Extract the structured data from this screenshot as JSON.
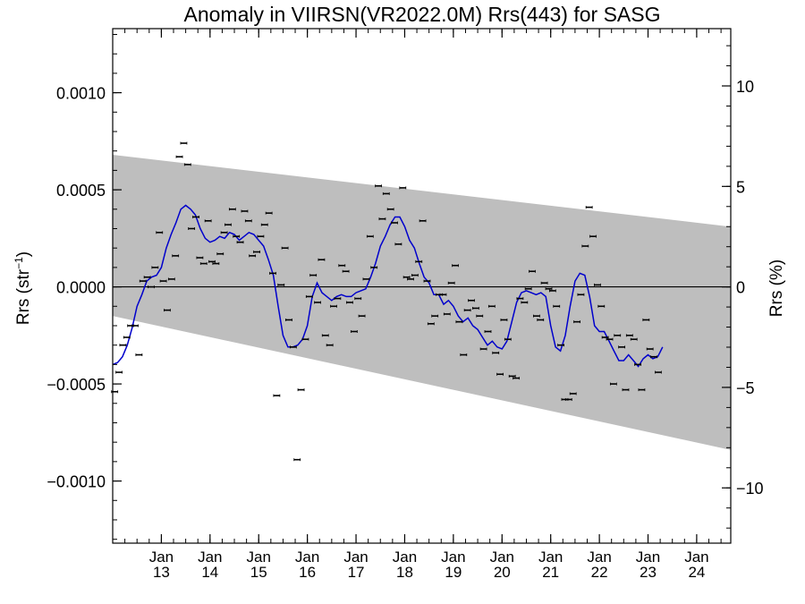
{
  "colors": {
    "band": "#bebebe",
    "series": "#0000cc",
    "points": "#000000",
    "zero_line": "#000000",
    "background": "#ffffff"
  },
  "chart_data": {
    "type": "scatter",
    "title": "Anomaly in VIIRSN(VR2022.0M) Rrs(443) for SASG",
    "ylabel": {
      "base": "Rrs (str",
      "sup": "−1",
      "end": ")"
    },
    "ylabel_right": "Rrs (%)",
    "x_range": [
      2012.0,
      2024.7
    ],
    "ylim": [
      -0.00132,
      0.00133
    ],
    "ylim_right": [
      -12.75,
      12.85
    ],
    "y_ticks": [
      {
        "value": 0.001,
        "label": "0.0010"
      },
      {
        "value": 0.0005,
        "label": "0.0005"
      },
      {
        "value": 0.0,
        "label": "0.0000"
      },
      {
        "value": -0.0005,
        "label": "−0.0005"
      },
      {
        "value": -0.001,
        "label": "−0.0010"
      }
    ],
    "y_ticks_right": [
      {
        "value": 10,
        "label": "10"
      },
      {
        "value": 5,
        "label": "5"
      },
      {
        "value": 0,
        "label": "0"
      },
      {
        "value": -5,
        "label": "−5"
      },
      {
        "value": -10,
        "label": "−10"
      }
    ],
    "x_ticks": [
      {
        "value": 2013.0,
        "month": "Jan",
        "year": "13"
      },
      {
        "value": 2014.0,
        "month": "Jan",
        "year": "14"
      },
      {
        "value": 2015.0,
        "month": "Jan",
        "year": "15"
      },
      {
        "value": 2016.0,
        "month": "Jan",
        "year": "16"
      },
      {
        "value": 2017.0,
        "month": "Jan",
        "year": "17"
      },
      {
        "value": 2018.0,
        "month": "Jan",
        "year": "18"
      },
      {
        "value": 2019.0,
        "month": "Jan",
        "year": "19"
      },
      {
        "value": 2020.0,
        "month": "Jan",
        "year": "20"
      },
      {
        "value": 2021.0,
        "month": "Jan",
        "year": "21"
      },
      {
        "value": 2022.0,
        "month": "Jan",
        "year": "22"
      },
      {
        "value": 2023.0,
        "month": "Jan",
        "year": "23"
      },
      {
        "value": 2024.0,
        "month": "Jan",
        "year": "24"
      }
    ],
    "zero_line": 0.0,
    "band": {
      "upper": [
        [
          2012.0,
          0.00068
        ],
        [
          2024.7,
          0.00031
        ]
      ],
      "lower": [
        [
          2012.0,
          -0.00015
        ],
        [
          2024.7,
          -0.00084
        ]
      ]
    },
    "points": [
      [
        2012.04,
        -0.00054
      ],
      [
        2012.13,
        -0.00044
      ],
      [
        2012.21,
        -0.0003
      ],
      [
        2012.29,
        -0.00026
      ],
      [
        2012.37,
        -0.0002
      ],
      [
        2012.46,
        -0.0002
      ],
      [
        2012.54,
        -0.00035
      ],
      [
        2012.62,
        3e-05
      ],
      [
        2012.71,
        5e-05
      ],
      [
        2012.79,
        0.0
      ],
      [
        2012.87,
        0.0001
      ],
      [
        2012.96,
        0.00028
      ],
      [
        2013.04,
        3e-05
      ],
      [
        2013.12,
        -0.00012
      ],
      [
        2013.21,
        4e-05
      ],
      [
        2013.29,
        0.00016
      ],
      [
        2013.37,
        0.00067
      ],
      [
        2013.46,
        0.00074
      ],
      [
        2013.54,
        0.00063
      ],
      [
        2013.62,
        0.0003
      ],
      [
        2013.71,
        0.00036
      ],
      [
        2013.79,
        0.00015
      ],
      [
        2013.87,
        0.00012
      ],
      [
        2013.96,
        0.00034
      ],
      [
        2014.04,
        0.00013
      ],
      [
        2014.12,
        0.00012
      ],
      [
        2014.21,
        0.00017
      ],
      [
        2014.29,
        0.00028
      ],
      [
        2014.37,
        0.00032
      ],
      [
        2014.46,
        0.0004
      ],
      [
        2014.54,
        0.00026
      ],
      [
        2014.62,
        0.00023
      ],
      [
        2014.71,
        0.00039
      ],
      [
        2014.79,
        0.00034
      ],
      [
        2014.87,
        0.00016
      ],
      [
        2014.96,
        0.00018
      ],
      [
        2015.04,
        0.00026
      ],
      [
        2015.12,
        0.00032
      ],
      [
        2015.21,
        0.00038
      ],
      [
        2015.29,
        7e-05
      ],
      [
        2015.37,
        -0.00056
      ],
      [
        2015.46,
        1e-05
      ],
      [
        2015.54,
        0.0002
      ],
      [
        2015.62,
        -0.00017
      ],
      [
        2015.71,
        -0.00031
      ],
      [
        2015.79,
        -0.00089
      ],
      [
        2015.87,
        -0.00053
      ],
      [
        2015.96,
        -0.00027
      ],
      [
        2016.04,
        -5e-05
      ],
      [
        2016.12,
        6e-05
      ],
      [
        2016.21,
        -8e-05
      ],
      [
        2016.29,
        0.00014
      ],
      [
        2016.37,
        -0.00025
      ],
      [
        2016.46,
        -0.0003
      ],
      [
        2016.54,
        -0.0001
      ],
      [
        2016.62,
        -6e-05
      ],
      [
        2016.71,
        0.00011
      ],
      [
        2016.79,
        8e-05
      ],
      [
        2016.87,
        -8e-05
      ],
      [
        2016.96,
        -0.00023
      ],
      [
        2017.04,
        -6e-05
      ],
      [
        2017.12,
        -0.00015
      ],
      [
        2017.21,
        4e-05
      ],
      [
        2017.29,
        0.00026
      ],
      [
        2017.37,
        0.0001
      ],
      [
        2017.46,
        0.00052
      ],
      [
        2017.54,
        0.00035
      ],
      [
        2017.62,
        0.00048
      ],
      [
        2017.71,
        0.0004
      ],
      [
        2017.79,
        0.00033
      ],
      [
        2017.87,
        0.00022
      ],
      [
        2017.96,
        0.00051
      ],
      [
        2018.04,
        5e-05
      ],
      [
        2018.12,
        4e-05
      ],
      [
        2018.21,
        6e-05
      ],
      [
        2018.29,
        0.00013
      ],
      [
        2018.37,
        0.00034
      ],
      [
        2018.46,
        3e-05
      ],
      [
        2018.54,
        -0.00019
      ],
      [
        2018.62,
        -0.00015
      ],
      [
        2018.71,
        -4e-05
      ],
      [
        2018.79,
        -4e-05
      ],
      [
        2018.87,
        -0.00014
      ],
      [
        2018.96,
        2e-05
      ],
      [
        2019.04,
        0.00011
      ],
      [
        2019.12,
        -0.00018
      ],
      [
        2019.21,
        -0.00035
      ],
      [
        2019.29,
        -0.00012
      ],
      [
        2019.37,
        -7e-05
      ],
      [
        2019.46,
        -0.00011
      ],
      [
        2019.54,
        -0.00015
      ],
      [
        2019.62,
        -0.00032
      ],
      [
        2019.71,
        -0.00023
      ],
      [
        2019.79,
        -0.0001
      ],
      [
        2019.87,
        -0.00034
      ],
      [
        2019.96,
        -0.00045
      ],
      [
        2020.04,
        -0.00017
      ],
      [
        2020.12,
        -0.00027
      ],
      [
        2020.21,
        -0.00046
      ],
      [
        2020.29,
        -0.00047
      ],
      [
        2020.37,
        -6e-05
      ],
      [
        2020.46,
        -8e-05
      ],
      [
        2020.54,
        -1e-05
      ],
      [
        2020.62,
        8e-05
      ],
      [
        2020.71,
        -0.00015
      ],
      [
        2020.79,
        -0.00017
      ],
      [
        2020.87,
        2e-05
      ],
      [
        2020.96,
        -1e-05
      ],
      [
        2021.04,
        -2e-05
      ],
      [
        2021.12,
        -0.0001
      ],
      [
        2021.21,
        -0.0003
      ],
      [
        2021.29,
        -0.00058
      ],
      [
        2021.37,
        -0.00058
      ],
      [
        2021.46,
        -0.00055
      ],
      [
        2021.54,
        -0.00018
      ],
      [
        2021.62,
        -4e-05
      ],
      [
        2021.71,
        0.00021
      ],
      [
        2021.79,
        0.00041
      ],
      [
        2021.87,
        0.00026
      ],
      [
        2021.96,
        1e-05
      ],
      [
        2022.04,
        -0.0001
      ],
      [
        2022.12,
        -0.00026
      ],
      [
        2022.21,
        -0.00027
      ],
      [
        2022.29,
        -0.0005
      ],
      [
        2022.37,
        -0.00025
      ],
      [
        2022.46,
        -0.00031
      ],
      [
        2022.54,
        -0.00053
      ],
      [
        2022.62,
        -0.00025
      ],
      [
        2022.71,
        -0.00027
      ],
      [
        2022.79,
        -0.0004
      ],
      [
        2022.87,
        -0.00053
      ],
      [
        2022.96,
        -0.00017
      ],
      [
        2023.04,
        -0.00032
      ],
      [
        2023.12,
        -0.00036
      ],
      [
        2023.21,
        -0.00044
      ]
    ],
    "series": {
      "values": [
        [
          2012.0,
          -0.0004
        ],
        [
          2012.1,
          -0.00039
        ],
        [
          2012.2,
          -0.00036
        ],
        [
          2012.3,
          -0.0003
        ],
        [
          2012.4,
          -0.00021
        ],
        [
          2012.5,
          -0.0001
        ],
        [
          2012.6,
          -4e-05
        ],
        [
          2012.7,
          3e-05
        ],
        [
          2012.8,
          5e-05
        ],
        [
          2012.9,
          6e-05
        ],
        [
          2013.0,
          0.0001
        ],
        [
          2013.1,
          0.0002
        ],
        [
          2013.2,
          0.00027
        ],
        [
          2013.3,
          0.00033
        ],
        [
          2013.4,
          0.0004
        ],
        [
          2013.5,
          0.00042
        ],
        [
          2013.6,
          0.0004
        ],
        [
          2013.7,
          0.00037
        ],
        [
          2013.8,
          0.0003
        ],
        [
          2013.9,
          0.00025
        ],
        [
          2014.0,
          0.00023
        ],
        [
          2014.1,
          0.00024
        ],
        [
          2014.2,
          0.00026
        ],
        [
          2014.3,
          0.00025
        ],
        [
          2014.4,
          0.00028
        ],
        [
          2014.5,
          0.00027
        ],
        [
          2014.6,
          0.00024
        ],
        [
          2014.7,
          0.00026
        ],
        [
          2014.8,
          0.00028
        ],
        [
          2014.9,
          0.00027
        ],
        [
          2015.0,
          0.00024
        ],
        [
          2015.1,
          0.00021
        ],
        [
          2015.2,
          0.00014
        ],
        [
          2015.3,
          6e-05
        ],
        [
          2015.4,
          -0.0001
        ],
        [
          2015.5,
          -0.00025
        ],
        [
          2015.6,
          -0.00031
        ],
        [
          2015.7,
          -0.00031
        ],
        [
          2015.8,
          -0.0003
        ],
        [
          2015.9,
          -0.00027
        ],
        [
          2016.0,
          -0.0002
        ],
        [
          2016.1,
          -5e-05
        ],
        [
          2016.2,
          2e-05
        ],
        [
          2016.3,
          -3e-05
        ],
        [
          2016.4,
          -5e-05
        ],
        [
          2016.5,
          -7e-05
        ],
        [
          2016.6,
          -5e-05
        ],
        [
          2016.7,
          -4e-05
        ],
        [
          2016.8,
          -5e-05
        ],
        [
          2016.9,
          -5e-05
        ],
        [
          2017.0,
          -3e-05
        ],
        [
          2017.1,
          -2e-05
        ],
        [
          2017.2,
          -1e-05
        ],
        [
          2017.3,
          5e-05
        ],
        [
          2017.4,
          0.00012
        ],
        [
          2017.5,
          0.00021
        ],
        [
          2017.6,
          0.00026
        ],
        [
          2017.7,
          0.00032
        ],
        [
          2017.8,
          0.00036
        ],
        [
          2017.9,
          0.00036
        ],
        [
          2018.0,
          0.00031
        ],
        [
          2018.1,
          0.00024
        ],
        [
          2018.2,
          0.0002
        ],
        [
          2018.3,
          0.00012
        ],
        [
          2018.4,
          5e-05
        ],
        [
          2018.5,
          2e-05
        ],
        [
          2018.6,
          -4e-05
        ],
        [
          2018.7,
          -4e-05
        ],
        [
          2018.8,
          -9e-05
        ],
        [
          2018.9,
          -7e-05
        ],
        [
          2019.0,
          -0.0001
        ],
        [
          2019.1,
          -0.00015
        ],
        [
          2019.2,
          -0.00018
        ],
        [
          2019.3,
          -0.00016
        ],
        [
          2019.4,
          -0.0002
        ],
        [
          2019.5,
          -0.00022
        ],
        [
          2019.6,
          -0.00026
        ],
        [
          2019.7,
          -0.0003
        ],
        [
          2019.8,
          -0.00028
        ],
        [
          2019.9,
          -0.00031
        ],
        [
          2020.0,
          -0.00032
        ],
        [
          2020.1,
          -0.00028
        ],
        [
          2020.2,
          -0.00018
        ],
        [
          2020.3,
          -8e-05
        ],
        [
          2020.4,
          -3e-05
        ],
        [
          2020.5,
          -2e-05
        ],
        [
          2020.6,
          -3e-05
        ],
        [
          2020.7,
          -4e-05
        ],
        [
          2020.8,
          -3e-05
        ],
        [
          2020.9,
          -5e-05
        ],
        [
          2021.0,
          -0.0002
        ],
        [
          2021.1,
          -0.00031
        ],
        [
          2021.2,
          -0.00033
        ],
        [
          2021.3,
          -0.00025
        ],
        [
          2021.4,
          -0.0001
        ],
        [
          2021.5,
          3e-05
        ],
        [
          2021.6,
          7e-05
        ],
        [
          2021.7,
          6e-05
        ],
        [
          2021.8,
          -5e-05
        ],
        [
          2021.9,
          -0.0002
        ],
        [
          2022.0,
          -0.00023
        ],
        [
          2022.1,
          -0.00023
        ],
        [
          2022.2,
          -0.00028
        ],
        [
          2022.3,
          -0.00033
        ],
        [
          2022.4,
          -0.00038
        ],
        [
          2022.5,
          -0.00038
        ],
        [
          2022.6,
          -0.00035
        ],
        [
          2022.7,
          -0.00038
        ],
        [
          2022.8,
          -0.00041
        ],
        [
          2022.9,
          -0.00037
        ],
        [
          2023.0,
          -0.00035
        ],
        [
          2023.1,
          -0.00037
        ],
        [
          2023.2,
          -0.00036
        ],
        [
          2023.3,
          -0.00031
        ]
      ]
    }
  }
}
